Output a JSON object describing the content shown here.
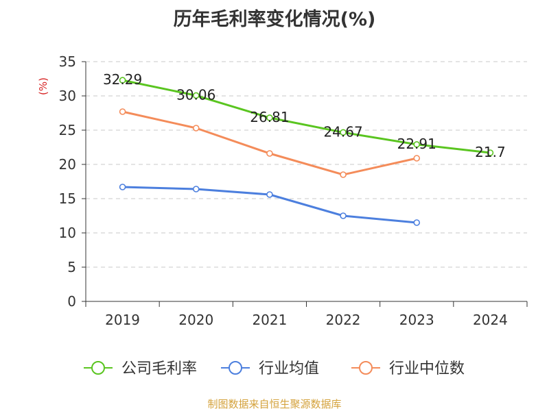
{
  "title": "历年毛利率变化情况(%)",
  "source": "制图数据来自恒生聚源数据库",
  "colors": {
    "company": "#5ac520",
    "avg": "#4c7fde",
    "median": "#f48c5a",
    "source": "#d4a23c",
    "ylabel": "#d62020"
  },
  "chart_data": {
    "type": "line",
    "title": "历年毛利率变化情况(%)",
    "ylabel": "(%)",
    "xlabel": "",
    "categories": [
      "2019",
      "2020",
      "2021",
      "2022",
      "2023",
      "2024"
    ],
    "ylim": [
      0,
      35
    ],
    "yticks": [
      "0",
      "5",
      "10",
      "15",
      "20",
      "25",
      "30",
      "35"
    ],
    "grid": "horizontal dashed",
    "legend_position": "bottom",
    "series": [
      {
        "name": "公司毛利率",
        "values": [
          32.29,
          30.06,
          26.81,
          24.67,
          22.91,
          21.7
        ],
        "labels": [
          "32.29",
          "30.06",
          "26.81",
          "24.67",
          "22.91",
          "21.7"
        ],
        "color": "#5ac520"
      },
      {
        "name": "行业均值",
        "values": [
          16.7,
          16.4,
          15.6,
          12.5,
          11.5,
          null
        ],
        "color": "#4c7fde"
      },
      {
        "name": "行业中位数",
        "values": [
          27.7,
          25.3,
          21.6,
          18.5,
          20.9,
          null
        ],
        "color": "#f48c5a"
      }
    ]
  }
}
